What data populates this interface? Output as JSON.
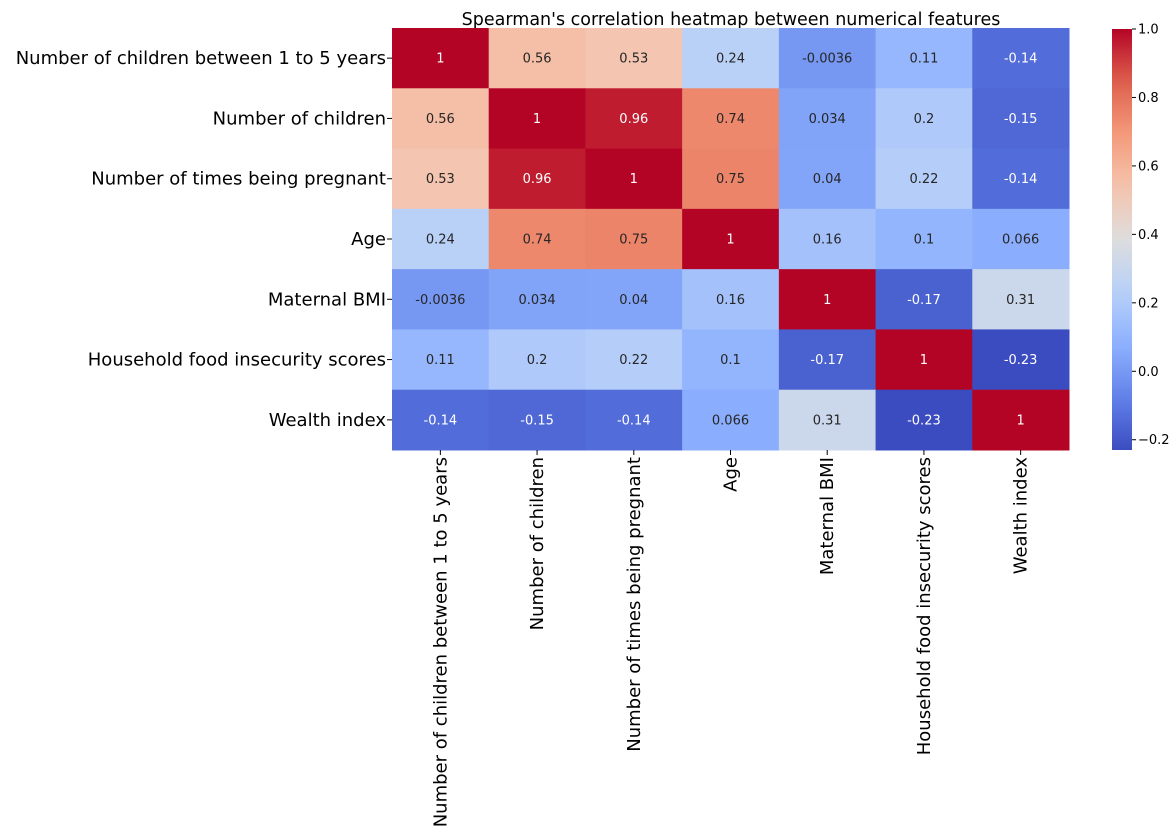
{
  "chart_data": {
    "type": "heatmap",
    "title": "Spearman's correlation heatmap between numerical features",
    "labels": [
      "Number of children between 1 to 5 years",
      "Number of children",
      "Number of times being pregnant",
      "Age",
      "Maternal BMI",
      "Household food insecurity scores",
      "Wealth index"
    ],
    "values": [
      [
        1,
        0.56,
        0.53,
        0.24,
        -0.0036,
        0.11,
        -0.14
      ],
      [
        0.56,
        1,
        0.96,
        0.74,
        0.034,
        0.2,
        -0.15
      ],
      [
        0.53,
        0.96,
        1,
        0.75,
        0.04,
        0.22,
        -0.14
      ],
      [
        0.24,
        0.74,
        0.75,
        1,
        0.16,
        0.1,
        0.066
      ],
      [
        -0.0036,
        0.034,
        0.04,
        0.16,
        1,
        -0.17,
        0.31
      ],
      [
        0.11,
        0.2,
        0.22,
        0.1,
        -0.17,
        1,
        -0.23
      ],
      [
        -0.14,
        -0.15,
        -0.14,
        0.066,
        0.31,
        -0.23,
        1
      ]
    ],
    "cell_labels": [
      [
        "1",
        "0.56",
        "0.53",
        "0.24",
        "-0.0036",
        "0.11",
        "-0.14"
      ],
      [
        "0.56",
        "1",
        "0.96",
        "0.74",
        "0.034",
        "0.2",
        "-0.15"
      ],
      [
        "0.53",
        "0.96",
        "1",
        "0.75",
        "0.04",
        "0.22",
        "-0.14"
      ],
      [
        "0.24",
        "0.74",
        "0.75",
        "1",
        "0.16",
        "0.1",
        "0.066"
      ],
      [
        "-0.0036",
        "0.034",
        "0.04",
        "0.16",
        "1",
        "-0.17",
        "0.31"
      ],
      [
        "0.11",
        "0.2",
        "0.22",
        "0.1",
        "-0.17",
        "1",
        "-0.23"
      ],
      [
        "-0.14",
        "-0.15",
        "-0.14",
        "0.066",
        "0.31",
        "-0.23",
        "1"
      ]
    ],
    "colormap": "coolwarm",
    "vmin": -0.23,
    "vmax": 1,
    "colorbar": {
      "ticks": [
        1.0,
        0.8,
        0.6,
        0.4,
        0.2,
        0.0,
        -0.2
      ],
      "tick_labels": [
        "1.0",
        "0.8",
        "0.6",
        "0.4",
        "0.2",
        "0.0",
        "−0.2"
      ]
    }
  }
}
